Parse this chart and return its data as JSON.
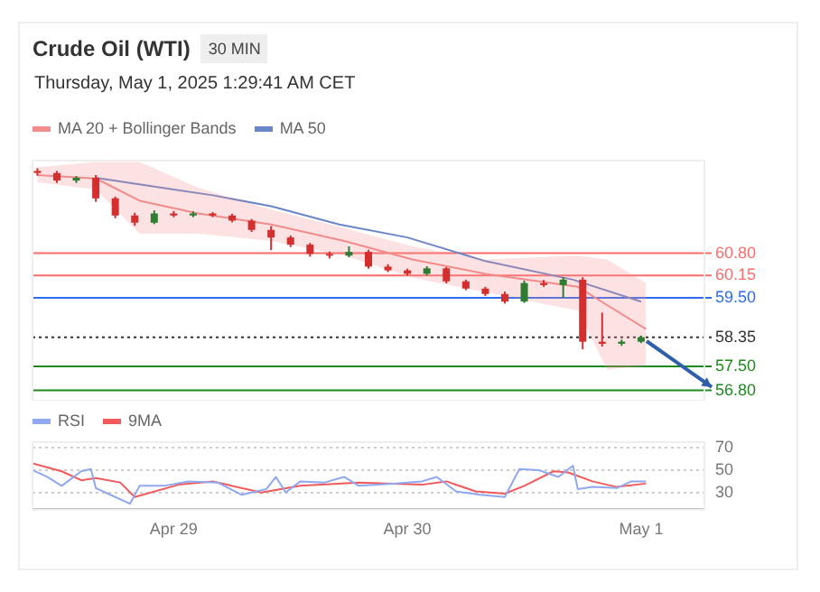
{
  "chart_data": [
    {
      "type": "candlestick",
      "title": "Crude Oil (WTI)",
      "subtitle": "Thursday, May 1, 2025 1:29:41 AM CET",
      "annotations": [
        "30 MIN"
      ],
      "x": [
        "2025-04-28T10:00",
        "2025-04-28T12:00",
        "2025-04-28T14:00",
        "2025-04-28T16:00",
        "2025-04-28T18:00",
        "2025-04-28T20:00",
        "2025-04-28T22:00",
        "2025-04-29T00:00",
        "2025-04-29T02:00",
        "2025-04-29T04:00",
        "2025-04-29T06:00",
        "2025-04-29T08:00",
        "2025-04-29T10:00",
        "2025-04-29T12:00",
        "2025-04-29T14:00",
        "2025-04-29T16:00",
        "2025-04-29T18:00",
        "2025-04-29T20:00",
        "2025-04-29T22:00",
        "2025-04-30T00:00",
        "2025-04-30T02:00",
        "2025-04-30T04:00",
        "2025-04-30T06:00",
        "2025-04-30T08:00",
        "2025-04-30T10:00",
        "2025-04-30T12:00",
        "2025-04-30T14:00",
        "2025-04-30T16:00",
        "2025-04-30T18:00",
        "2025-04-30T20:00",
        "2025-04-30T22:00",
        "2025-05-01T00:00"
      ],
      "ohlc": [
        [
          63.2,
          63.28,
          63.06,
          63.14
        ],
        [
          63.14,
          63.2,
          62.85,
          62.92
        ],
        [
          62.92,
          63.05,
          62.85,
          63.0
        ],
        [
          63.0,
          63.08,
          62.3,
          62.4
        ],
        [
          62.4,
          62.45,
          61.82,
          61.9
        ],
        [
          61.9,
          61.98,
          61.6,
          61.69
        ],
        [
          61.69,
          62.05,
          61.65,
          61.96
        ],
        [
          61.96,
          62.03,
          61.85,
          61.9
        ],
        [
          61.9,
          62.02,
          61.85,
          61.96
        ],
        [
          61.96,
          62.0,
          61.85,
          61.9
        ],
        [
          61.9,
          61.95,
          61.7,
          61.75
        ],
        [
          61.75,
          61.8,
          61.42,
          61.48
        ],
        [
          61.48,
          61.59,
          60.89,
          61.26
        ],
        [
          61.26,
          61.32,
          60.98,
          61.05
        ],
        [
          61.05,
          61.1,
          60.7,
          60.78
        ],
        [
          60.78,
          60.85,
          60.65,
          60.73
        ],
        [
          60.73,
          61.0,
          60.68,
          60.84
        ],
        [
          60.84,
          60.9,
          60.35,
          60.41
        ],
        [
          60.41,
          60.48,
          60.25,
          60.3
        ],
        [
          60.3,
          60.35,
          60.15,
          60.2
        ],
        [
          60.2,
          60.42,
          60.15,
          60.36
        ],
        [
          60.36,
          60.4,
          59.92,
          59.98
        ],
        [
          59.98,
          60.03,
          59.72,
          59.77
        ],
        [
          59.77,
          59.82,
          59.55,
          59.61
        ],
        [
          59.61,
          59.68,
          59.33,
          59.39
        ],
        [
          59.39,
          60.0,
          59.35,
          59.93
        ],
        [
          59.93,
          60.02,
          59.82,
          59.87
        ],
        [
          59.87,
          60.1,
          59.5,
          60.03
        ],
        [
          60.03,
          60.1,
          58.0,
          58.22
        ],
        [
          58.22,
          59.07,
          58.08,
          58.16
        ],
        [
          58.16,
          58.28,
          58.1,
          58.22
        ],
        [
          58.22,
          58.4,
          58.18,
          58.35
        ]
      ],
      "colors": [
        "#d32f2f",
        "#d32f2f",
        "#2e7d32",
        "#d32f2f",
        "#d32f2f",
        "#d32f2f",
        "#2e7d32",
        "#d32f2f",
        "#2e7d32",
        "#d32f2f",
        "#d32f2f",
        "#d32f2f",
        "#d32f2f",
        "#d32f2f",
        "#d32f2f",
        "#d32f2f",
        "#2e7d32",
        "#d32f2f",
        "#d32f2f",
        "#d32f2f",
        "#2e7d32",
        "#d32f2f",
        "#d32f2f",
        "#d32f2f",
        "#d32f2f",
        "#2e7d32",
        "#d32f2f",
        "#2e7d32",
        "#d32f2f",
        "#d32f2f",
        "#2e7d32",
        "#2e7d32"
      ],
      "series": [
        {
          "type": "line",
          "name": "MA 20 + Bollinger Bands",
          "color": "#f28b8b",
          "x": [
            "2025-04-28T10:00",
            "2025-04-28T16:00",
            "2025-04-28T20:30",
            "2025-04-29T02:30",
            "2025-04-29T10:00",
            "2025-04-29T17:30",
            "2025-04-30T00:30",
            "2025-04-30T08:00",
            "2025-04-30T17:30",
            "2025-04-30T20:30",
            "2025-05-01T00:30"
          ],
          "values": [
            63.08,
            62.98,
            62.33,
            61.96,
            61.64,
            61.16,
            60.62,
            60.2,
            59.82,
            59.29,
            58.59
          ],
          "lower": [
            62.87,
            62.66,
            61.37,
            61.37,
            61.16,
            60.73,
            60.09,
            59.66,
            59.13,
            57.41,
            57.52
          ],
          "upper": [
            63.3,
            63.46,
            63.46,
            62.71,
            62.07,
            61.53,
            61.0,
            60.62,
            60.73,
            60.62,
            59.93
          ]
        },
        {
          "type": "line",
          "name": "MA 50",
          "color": "#6a86c8",
          "x": [
            "2025-04-28T16:00",
            "2025-04-29T00:00",
            "2025-04-29T04:00",
            "2025-04-29T10:00",
            "2025-04-29T17:00",
            "2025-04-30T00:00",
            "2025-04-30T08:00",
            "2025-04-30T17:00",
            "2025-05-01T00:00"
          ],
          "values": [
            63.0,
            62.66,
            62.49,
            62.17,
            61.64,
            61.26,
            60.57,
            60.03,
            59.39
          ]
        }
      ],
      "xlim": [
        "2025-04-28T09:30",
        "2025-05-01T06:30"
      ],
      "ylim": [
        56.5,
        63.5
      ],
      "legend": "top left",
      "yticks": [
        {
          "value": 60.8,
          "label": "60.80"
        },
        {
          "value": 60.15,
          "label": "60.15"
        },
        {
          "value": 59.5,
          "label": "59.50"
        },
        {
          "value": 58.35,
          "label": "58.35"
        },
        {
          "value": 57.5,
          "label": "57.50"
        },
        {
          "value": 56.8,
          "label": "56.80"
        }
      ],
      "ref_lines": [
        {
          "axis": "y",
          "value": 60.8,
          "color": "#ff6b6b"
        },
        {
          "axis": "y",
          "value": 60.15,
          "color": "#ff6b6b"
        },
        {
          "axis": "y",
          "value": 59.5,
          "color": "#2f6bf0"
        },
        {
          "axis": "y",
          "value": 58.35,
          "color": "#333333",
          "line_style": "dotted"
        },
        {
          "axis": "y",
          "value": 57.5,
          "color": "#1e8a1e"
        },
        {
          "axis": "y",
          "value": 56.8,
          "color": "#1e8a1e"
        }
      ]
    },
    {
      "type": "line",
      "series": [
        {
          "name": "RSI",
          "color": "#8fa8f0",
          "x": [
            "2025-04-28T09:30",
            "2025-04-28T11:00",
            "2025-04-28T12:30",
            "2025-04-28T14:30",
            "2025-04-28T15:30",
            "2025-04-28T16:00",
            "2025-04-28T18:00",
            "2025-04-28T19:30",
            "2025-04-28T20:30",
            "2025-04-28T23:00",
            "2025-04-29T01:30",
            "2025-04-29T04:30",
            "2025-04-29T07:00",
            "2025-04-29T09:30",
            "2025-04-29T10:30",
            "2025-04-29T11:30",
            "2025-04-29T13:00",
            "2025-04-29T15:30",
            "2025-04-29T17:30",
            "2025-04-29T19:00",
            "2025-04-29T22:30",
            "2025-04-30T01:30",
            "2025-04-30T03:00",
            "2025-04-30T05:00",
            "2025-04-30T07:30",
            "2025-04-30T10:00",
            "2025-04-30T11:30",
            "2025-04-30T13:30",
            "2025-04-30T15:30",
            "2025-04-30T17:00",
            "2025-04-30T17:30",
            "2025-04-30T19:00",
            "2025-04-30T21:30",
            "2025-04-30T23:00",
            "2025-05-01T00:30"
          ],
          "values": [
            50,
            44,
            36,
            49,
            51,
            34,
            26,
            20,
            36,
            36,
            40,
            39,
            28,
            33,
            44,
            30,
            40,
            39,
            44,
            36,
            38,
            40,
            44,
            31,
            28,
            26,
            51,
            50,
            44,
            54,
            33,
            35,
            34,
            40,
            40
          ]
        },
        {
          "name": "9MA",
          "color": "#f05a5a",
          "x": [
            "2025-04-28T09:30",
            "2025-04-28T12:30",
            "2025-04-28T14:30",
            "2025-04-28T16:00",
            "2025-04-28T18:30",
            "2025-04-28T20:00",
            "2025-04-29T00:30",
            "2025-04-29T04:00",
            "2025-04-29T09:00",
            "2025-04-29T13:00",
            "2025-04-29T19:00",
            "2025-04-30T01:30",
            "2025-04-30T04:00",
            "2025-04-30T07:00",
            "2025-04-30T10:00",
            "2025-04-30T12:00",
            "2025-04-30T15:00",
            "2025-04-30T16:30",
            "2025-04-30T19:00",
            "2025-04-30T21:30",
            "2025-05-01T00:30"
          ],
          "values": [
            56,
            49,
            41,
            43,
            39,
            26,
            37,
            40,
            30,
            36,
            39,
            37,
            40,
            31,
            29,
            36,
            49,
            48,
            40,
            35,
            38
          ]
        }
      ],
      "xlim": [
        "2025-04-28T09:30",
        "2025-05-01T06:30"
      ],
      "xticks": [
        {
          "value": "2025-04-29",
          "label": "Apr 29"
        },
        {
          "value": "2025-04-30",
          "label": "Apr 30"
        },
        {
          "value": "2025-05-01",
          "label": "May 1"
        }
      ],
      "ylim": [
        15,
        75
      ],
      "yticks": [
        30,
        50,
        70
      ],
      "grid": "y",
      "legend": "top left"
    }
  ]
}
